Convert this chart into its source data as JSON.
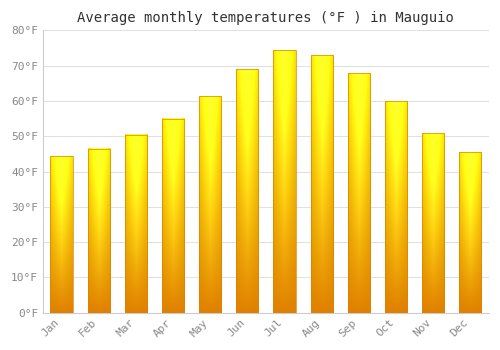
{
  "title": "Average monthly temperatures (°F ) in Mauguio",
  "months": [
    "Jan",
    "Feb",
    "Mar",
    "Apr",
    "May",
    "Jun",
    "Jul",
    "Aug",
    "Sep",
    "Oct",
    "Nov",
    "Dec"
  ],
  "values": [
    44.5,
    46.5,
    50.5,
    55,
    61.5,
    69,
    74.5,
    73,
    68,
    60,
    51,
    45.5
  ],
  "bar_color_top": "#FFD966",
  "bar_color_bottom": "#F0A500",
  "bar_edge_color": "#E08000",
  "background_color": "#FFFFFF",
  "grid_color": "#E0E0E0",
  "ylim": [
    0,
    80
  ],
  "yticks": [
    0,
    10,
    20,
    30,
    40,
    50,
    60,
    70,
    80
  ],
  "ytick_labels": [
    "0°F",
    "10°F",
    "20°F",
    "30°F",
    "40°F",
    "50°F",
    "60°F",
    "70°F",
    "80°F"
  ],
  "title_fontsize": 10,
  "tick_fontsize": 8,
  "tick_color": "#888888",
  "spine_color": "#CCCCCC",
  "bar_width": 0.6
}
